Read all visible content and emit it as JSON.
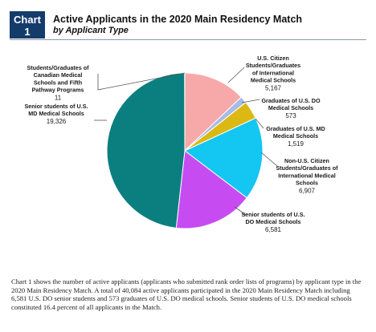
{
  "header": {
    "badge_line1": "Chart",
    "badge_line2": "1",
    "title": "Active Applicants in the 2020 Main Residency Match",
    "subtitle": "by Applicant Type"
  },
  "chart_data": {
    "type": "pie",
    "title": "Active Applicants in the 2020 Main Residency Match",
    "subtitle": "by Applicant Type",
    "slices": [
      {
        "label": [
          "U.S. Citizen",
          "Students/Graduates",
          "of International",
          "Medical Schools"
        ],
        "value": 5167,
        "value_label": "5,167",
        "color": "#f7a8a8"
      },
      {
        "label": [
          "Graduates of U.S. DO",
          "Medical Schools"
        ],
        "value": 573,
        "value_label": "573",
        "color": "#a7bce4"
      },
      {
        "label": [
          "Graduates of U.S. MD",
          "Medical Schools"
        ],
        "value": 1519,
        "value_label": "1,519",
        "color": "#dcb814"
      },
      {
        "label": [
          "Non-U.S. Citizen",
          "Students/Graduates of",
          "International Medical",
          "Schools"
        ],
        "value": 6907,
        "value_label": "6,907",
        "color": "#14c6f2"
      },
      {
        "label": [
          "Senior students of U.S.",
          "DO Medical Schools"
        ],
        "value": 6581,
        "value_label": "6,581",
        "color": "#c64cf2"
      },
      {
        "label": [
          "Senior students of U.S.",
          "MD Medical Schools"
        ],
        "value": 19326,
        "value_label": "19,326",
        "color": "#0b7f7f"
      },
      {
        "label": [
          "Students/Graduates of",
          "Canadian Medical",
          "Schools and Fifth",
          "Pathway Programs"
        ],
        "value": 11,
        "value_label": "11",
        "color": "#e06666"
      }
    ]
  },
  "caption": "Chart 1 shows the number of active applicants (applicants who submitted rank order lists of programs) by applicant type in the 2020 Main Residency Match. A total of 40,084 active applicants participated in the 2020 Main Residency Match including 6,581 U.S. DO senior students and 573 graduates of U.S. DO medical schools. Senior students of U.S. DO medical schools constituted 16.4 percent of all applicants in the Match."
}
